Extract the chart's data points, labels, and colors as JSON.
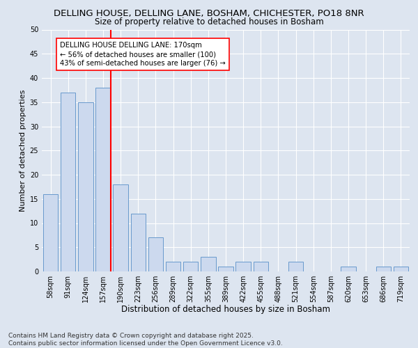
{
  "title1": "DELLING HOUSE, DELLING LANE, BOSHAM, CHICHESTER, PO18 8NR",
  "title2": "Size of property relative to detached houses in Bosham",
  "xlabel": "Distribution of detached houses by size in Bosham",
  "ylabel": "Number of detached properties",
  "categories": [
    "58sqm",
    "91sqm",
    "124sqm",
    "157sqm",
    "190sqm",
    "223sqm",
    "256sqm",
    "289sqm",
    "322sqm",
    "355sqm",
    "389sqm",
    "422sqm",
    "455sqm",
    "488sqm",
    "521sqm",
    "554sqm",
    "587sqm",
    "620sqm",
    "653sqm",
    "686sqm",
    "719sqm"
  ],
  "values": [
    16,
    37,
    35,
    38,
    18,
    12,
    7,
    2,
    2,
    3,
    1,
    2,
    2,
    0,
    2,
    0,
    0,
    1,
    0,
    1,
    1
  ],
  "bar_color": "#ccd9ee",
  "bar_edge_color": "#6899cc",
  "annotation_text": "DELLING HOUSE DELLING LANE: 170sqm\n← 56% of detached houses are smaller (100)\n43% of semi-detached houses are larger (76) →",
  "annotation_box_color": "white",
  "annotation_box_edge": "red",
  "ylim": [
    0,
    50
  ],
  "yticks": [
    0,
    5,
    10,
    15,
    20,
    25,
    30,
    35,
    40,
    45,
    50
  ],
  "background_color": "#dde5f0",
  "footer1": "Contains HM Land Registry data © Crown copyright and database right 2025.",
  "footer2": "Contains public sector information licensed under the Open Government Licence v3.0.",
  "title1_fontsize": 9.5,
  "title2_fontsize": 8.5,
  "xlabel_fontsize": 8.5,
  "ylabel_fontsize": 8,
  "tick_fontsize": 7,
  "annotation_fontsize": 7.2,
  "footer_fontsize": 6.5
}
